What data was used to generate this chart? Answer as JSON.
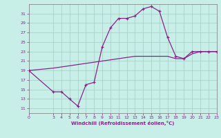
{
  "xlabel": "Windchill (Refroidissement éolien,°C)",
  "background_color": "#c8eee8",
  "line_color": "#882288",
  "grid_color": "#a0ccc4",
  "xlim": [
    0,
    23
  ],
  "ylim": [
    10,
    33
  ],
  "xticks": [
    0,
    3,
    4,
    5,
    6,
    7,
    8,
    9,
    10,
    11,
    12,
    13,
    14,
    15,
    16,
    17,
    18,
    19,
    20,
    21,
    22,
    23
  ],
  "yticks": [
    11,
    13,
    15,
    17,
    19,
    21,
    23,
    25,
    27,
    29,
    31
  ],
  "curve_x": [
    0,
    3,
    4,
    5,
    6,
    7,
    8,
    9,
    10,
    11,
    12,
    13,
    14,
    15,
    16,
    17,
    18,
    19,
    20,
    21,
    22,
    23
  ],
  "curve_y": [
    19,
    14.5,
    14.5,
    13,
    11.5,
    16,
    16.5,
    24,
    28,
    30,
    30,
    30.5,
    32,
    32.5,
    31.5,
    26,
    22,
    21.5,
    23,
    23,
    23,
    23
  ],
  "line_x": [
    0,
    3,
    5,
    7,
    9,
    11,
    13,
    15,
    17,
    18,
    19,
    20,
    21,
    22,
    23
  ],
  "line_y": [
    19,
    19.5,
    20,
    20.5,
    21,
    21.5,
    22,
    22,
    22,
    21.5,
    21.5,
    22.5,
    23,
    23,
    23
  ]
}
